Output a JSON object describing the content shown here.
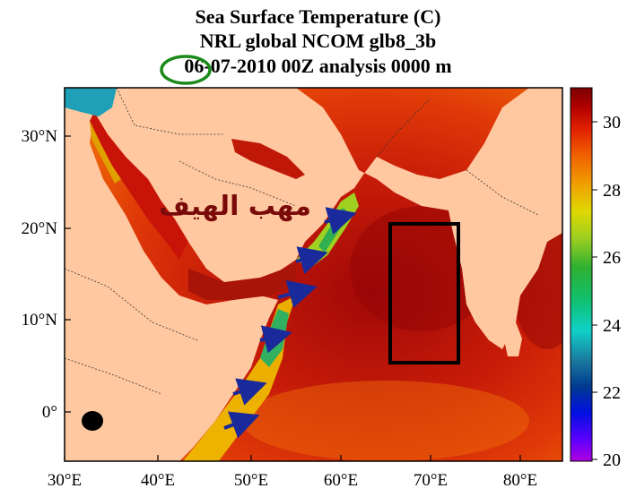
{
  "title": {
    "line1": "Sea Surface Temperature (C)",
    "line2": "NRL global NCOM glb8_3b",
    "line3": "06-07-2010 00Z analysis   0000 m"
  },
  "annotation": {
    "arabic_label": "مهب الهيف"
  },
  "axes": {
    "x_ticks": [
      "30°E",
      "40°E",
      "50°E",
      "60°E",
      "70°E",
      "80°E"
    ],
    "y_ticks": [
      "30°N",
      "20°N",
      "10°N",
      "0°"
    ],
    "lon_range": [
      30,
      85
    ],
    "lat_range": [
      -5,
      35
    ]
  },
  "colorbar": {
    "ticks": [
      "30",
      "28",
      "26",
      "24",
      "22",
      "20"
    ],
    "range": [
      20,
      31
    ],
    "colors": [
      "#b000e0",
      "#5a00ff",
      "#0010e0",
      "#003a90",
      "#1b7aa0",
      "#10d0c8",
      "#10c070",
      "#30b030",
      "#a0d020",
      "#e0d800",
      "#f0a000",
      "#f06000",
      "#e02000",
      "#b00000",
      "#7a0000"
    ]
  },
  "colors": {
    "land": "#ffc8a0",
    "box": "#000000",
    "circle": "#1a8a1a",
    "arrow": "#1a2a9a",
    "label": "#7a0a0a"
  }
}
